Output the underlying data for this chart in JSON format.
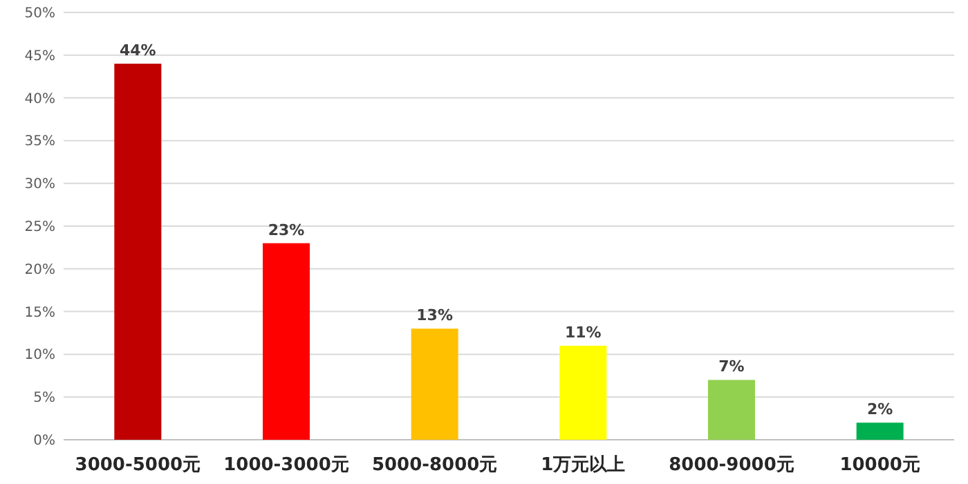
{
  "chart_data": {
    "type": "bar",
    "categories": [
      "3000-5000元",
      "1000-3000元",
      "5000-8000元",
      "1万元以上",
      "8000-9000元",
      "10000元"
    ],
    "values": [
      44,
      23,
      13,
      11,
      7,
      2
    ],
    "colors": [
      "#c00000",
      "#ff0000",
      "#ffc000",
      "#ffff00",
      "#92d050",
      "#00b050"
    ],
    "value_labels": [
      "44%",
      "23%",
      "13%",
      "11%",
      "7%",
      "2%"
    ],
    "ylim": [
      0,
      50
    ],
    "yticks": [
      {
        "value": 0,
        "label": "0%"
      },
      {
        "value": 5,
        "label": "5%"
      },
      {
        "value": 10,
        "label": "10%"
      },
      {
        "value": 15,
        "label": "15%"
      },
      {
        "value": 20,
        "label": "20%"
      },
      {
        "value": 25,
        "label": "25%"
      },
      {
        "value": 30,
        "label": "30%"
      },
      {
        "value": 35,
        "label": "35%"
      },
      {
        "value": 40,
        "label": "40%"
      },
      {
        "value": 45,
        "label": "45%"
      },
      {
        "value": 50,
        "label": "50%"
      }
    ],
    "grid": "y"
  }
}
